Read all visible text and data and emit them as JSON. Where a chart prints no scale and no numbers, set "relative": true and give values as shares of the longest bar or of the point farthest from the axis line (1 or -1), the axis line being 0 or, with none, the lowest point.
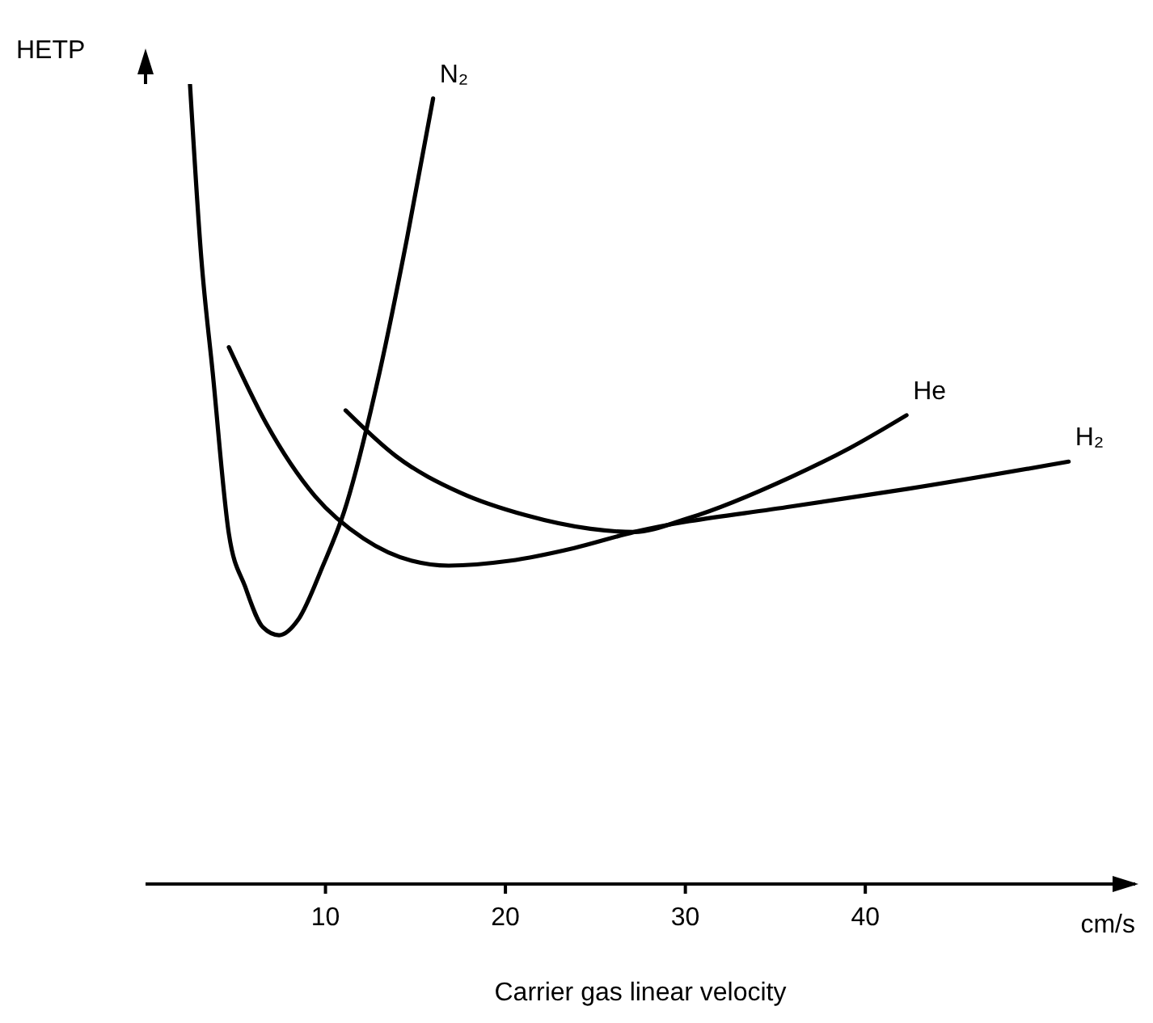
{
  "chart_data": {
    "type": "line",
    "xlabel": "Carrier gas linear velocity",
    "ylabel": "HETP",
    "annotations": [
      "cm/s"
    ],
    "relative": true,
    "xlim": [
      0,
      55
    ],
    "xticks": [
      10,
      20,
      30,
      40
    ],
    "grid": false,
    "legend": false,
    "marker": "none",
    "line_style": "solid",
    "series": [
      {
        "name": "N₂",
        "color": "#000000",
        "x": [
          2.47,
          3.1,
          3.73,
          4.63,
          5.53,
          6.52,
          7.42,
          8.5,
          9.86,
          11.03,
          13.01,
          14.54,
          15.98
        ],
        "values": [
          1.0,
          0.782,
          0.64,
          0.438,
          0.372,
          0.321,
          0.311,
          0.331,
          0.398,
          0.465,
          0.64,
          0.808,
          0.982
        ]
      },
      {
        "name": "He",
        "color": "#000000",
        "x": [
          11.12,
          13.91,
          17.51,
          21.12,
          24.72,
          27.15,
          30.13,
          35.89,
          39.14,
          42.29
        ],
        "values": [
          0.592,
          0.535,
          0.489,
          0.461,
          0.444,
          0.44,
          0.457,
          0.509,
          0.545,
          0.586
        ]
      },
      {
        "name": "H₂",
        "color": "#000000",
        "x": [
          4.63,
          6.7,
          9.41,
          12.11,
          14.81,
          16.85,
          20.22,
          23.82,
          27.15,
          35.89,
          42.38,
          51.3
        ],
        "values": [
          0.671,
          0.576,
          0.485,
          0.432,
          0.404,
          0.398,
          0.404,
          0.42,
          0.44,
          0.472,
          0.494,
          0.528
        ]
      }
    ]
  }
}
